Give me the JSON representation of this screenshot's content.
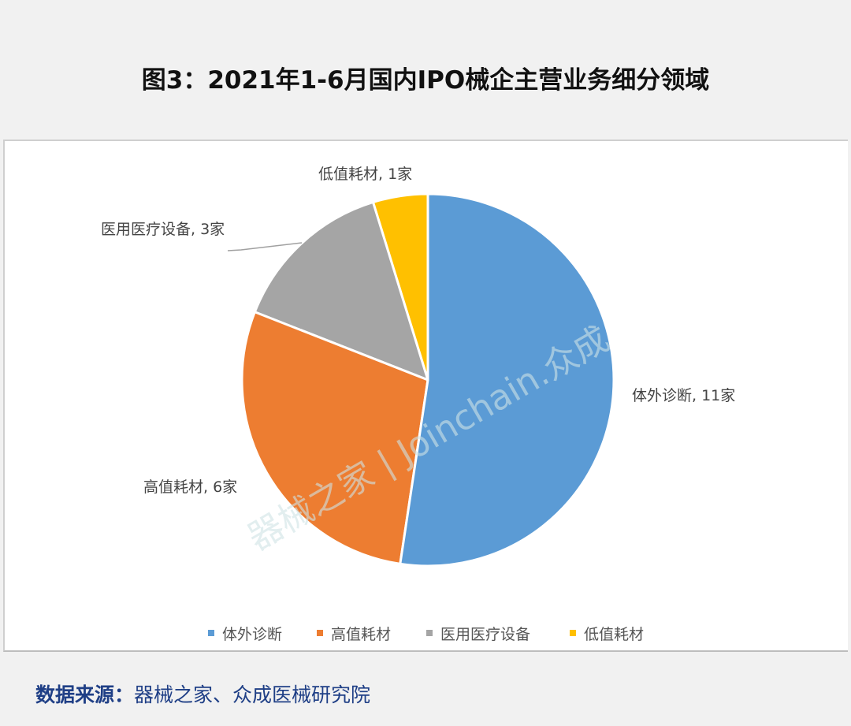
{
  "title": "图3：2021年1-6月国内IPO械企主营业务细分领域",
  "watermark": "器械之家 | Joinchain.众成",
  "source": {
    "label": "数据来源：",
    "text": "器械之家、众成医械研究院"
  },
  "chart_data": {
    "type": "pie",
    "title": "",
    "categories": [
      "体外诊断",
      "高值耗材",
      "医用医疗设备",
      "低值耗材"
    ],
    "values": [
      11,
      6,
      3,
      1
    ],
    "unit": "家",
    "data_labels": [
      "体外诊断, 11家",
      "高值耗材, 6家",
      "医用医疗设备, 3家",
      "低值耗材, 1家"
    ],
    "colors": [
      "#5b9bd5",
      "#ed7d31",
      "#a5a5a5",
      "#ffc000"
    ],
    "start_angle": "top, clockwise",
    "legend": "bottom"
  }
}
